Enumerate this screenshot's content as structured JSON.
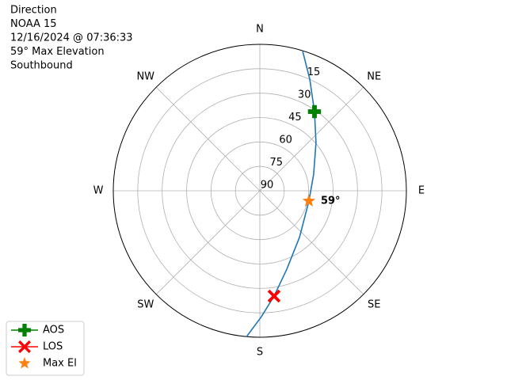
{
  "chart_data": {
    "type": "polar",
    "title_lines": [
      "Direction",
      "NOAA 15",
      "12/16/2024 @ 07:36:33",
      "59° Max Elevation",
      "Southbound"
    ],
    "rlim": [
      90,
      0
    ],
    "rticks": [
      90,
      75,
      60,
      45,
      30,
      15
    ],
    "thetaticks": [
      {
        "value": 0,
        "label": "N"
      },
      {
        "value": 45,
        "label": "NE"
      },
      {
        "value": 90,
        "label": "E"
      },
      {
        "value": 135,
        "label": "SE"
      },
      {
        "value": 180,
        "label": "S"
      },
      {
        "value": 225,
        "label": "SW"
      },
      {
        "value": 270,
        "label": "W"
      },
      {
        "value": 315,
        "label": "NW"
      }
    ],
    "grid": true,
    "legend": "lower left",
    "series": [
      {
        "color": "#1f77b4",
        "marker": "line",
        "x": [
          17.1,
          24.1,
          34.6,
          49.3,
          72.8,
          101.8,
          139.7,
          161.0,
          172.3,
          179.3,
          185.2
        ],
        "values": [
          0.4,
          14.9,
          30.9,
          44.5,
          55.4,
          59.2,
          52.4,
          39.1,
          24.7,
          12.6,
          0
        ]
      },
      {
        "name": "AOS",
        "color": "#008000",
        "marker": "plus",
        "x": [
          34.6
        ],
        "values": [
          30.9
        ]
      },
      {
        "name": "LOS",
        "color": "#ff0000",
        "marker": "x",
        "x": [
          172.3
        ],
        "values": [
          24.7
        ]
      },
      {
        "name": "Max El",
        "color": "#ff7f0e",
        "marker": "star",
        "x": [
          101.8
        ],
        "values": [
          59.2
        ],
        "value_labels": [
          "59°"
        ]
      }
    ]
  }
}
